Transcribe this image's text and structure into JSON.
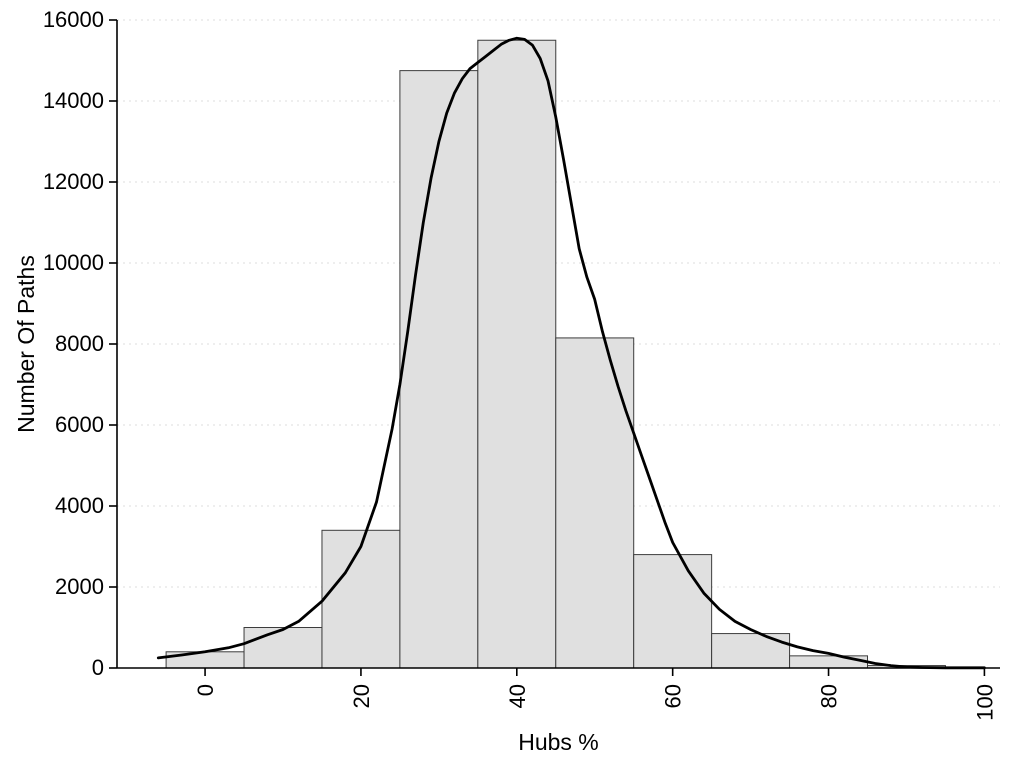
{
  "chart_data": {
    "type": "bar",
    "subtype": "histogram-with-density-curve",
    "title": "",
    "xlabel": "Hubs %",
    "ylabel": "Number Of Paths",
    "xlim": [
      -11.3,
      102
    ],
    "ylim": [
      0,
      16000
    ],
    "xticks": [
      0,
      20,
      40,
      60,
      80,
      100
    ],
    "yticks": [
      0,
      2000,
      4000,
      6000,
      8000,
      10000,
      12000,
      14000,
      16000
    ],
    "xtick_labels_rotated": true,
    "grid": "faint dotted horizontal lines at y ticks",
    "legend": "none",
    "colors": {
      "bar_fill": "#e0e0e0",
      "bar_stroke": "#3c3c3c",
      "curve": "#000000",
      "axis": "#000000",
      "gridline": "#dcdcdc",
      "background": "#ffffff"
    },
    "bins": {
      "start": -5,
      "width": 10,
      "edges": [
        -5,
        5,
        15,
        25,
        35,
        45,
        55,
        65,
        75,
        85,
        95
      ],
      "counts": [
        400,
        1000,
        3400,
        14750,
        15500,
        8150,
        2800,
        850,
        300,
        60
      ]
    },
    "density_curve": {
      "x": [
        -6,
        -3,
        0,
        3,
        5,
        8,
        10,
        12,
        15,
        18,
        20,
        22,
        24,
        25,
        26,
        27,
        28,
        29,
        30,
        31,
        32,
        33,
        34,
        35,
        36,
        37,
        38,
        39,
        40,
        41,
        42,
        43,
        44,
        45,
        46,
        47,
        48,
        49,
        50,
        51,
        52,
        53,
        54,
        55,
        56,
        57,
        58,
        59,
        60,
        62,
        64,
        66,
        68,
        70,
        72,
        74,
        76,
        78,
        80,
        82,
        84,
        86,
        88,
        90,
        92,
        95,
        100
      ],
      "y": [
        250,
        320,
        400,
        500,
        600,
        820,
        950,
        1150,
        1650,
        2350,
        3000,
        4100,
        5900,
        7000,
        8300,
        9700,
        11000,
        12100,
        13000,
        13700,
        14200,
        14550,
        14800,
        14950,
        15100,
        15250,
        15400,
        15500,
        15550,
        15520,
        15380,
        15050,
        14500,
        13600,
        12550,
        11450,
        10350,
        9650,
        9100,
        8300,
        7600,
        6950,
        6350,
        5800,
        5250,
        4700,
        4150,
        3600,
        3100,
        2400,
        1850,
        1450,
        1150,
        950,
        780,
        640,
        520,
        430,
        360,
        270,
        190,
        110,
        60,
        25,
        12,
        6,
        4
      ]
    }
  }
}
